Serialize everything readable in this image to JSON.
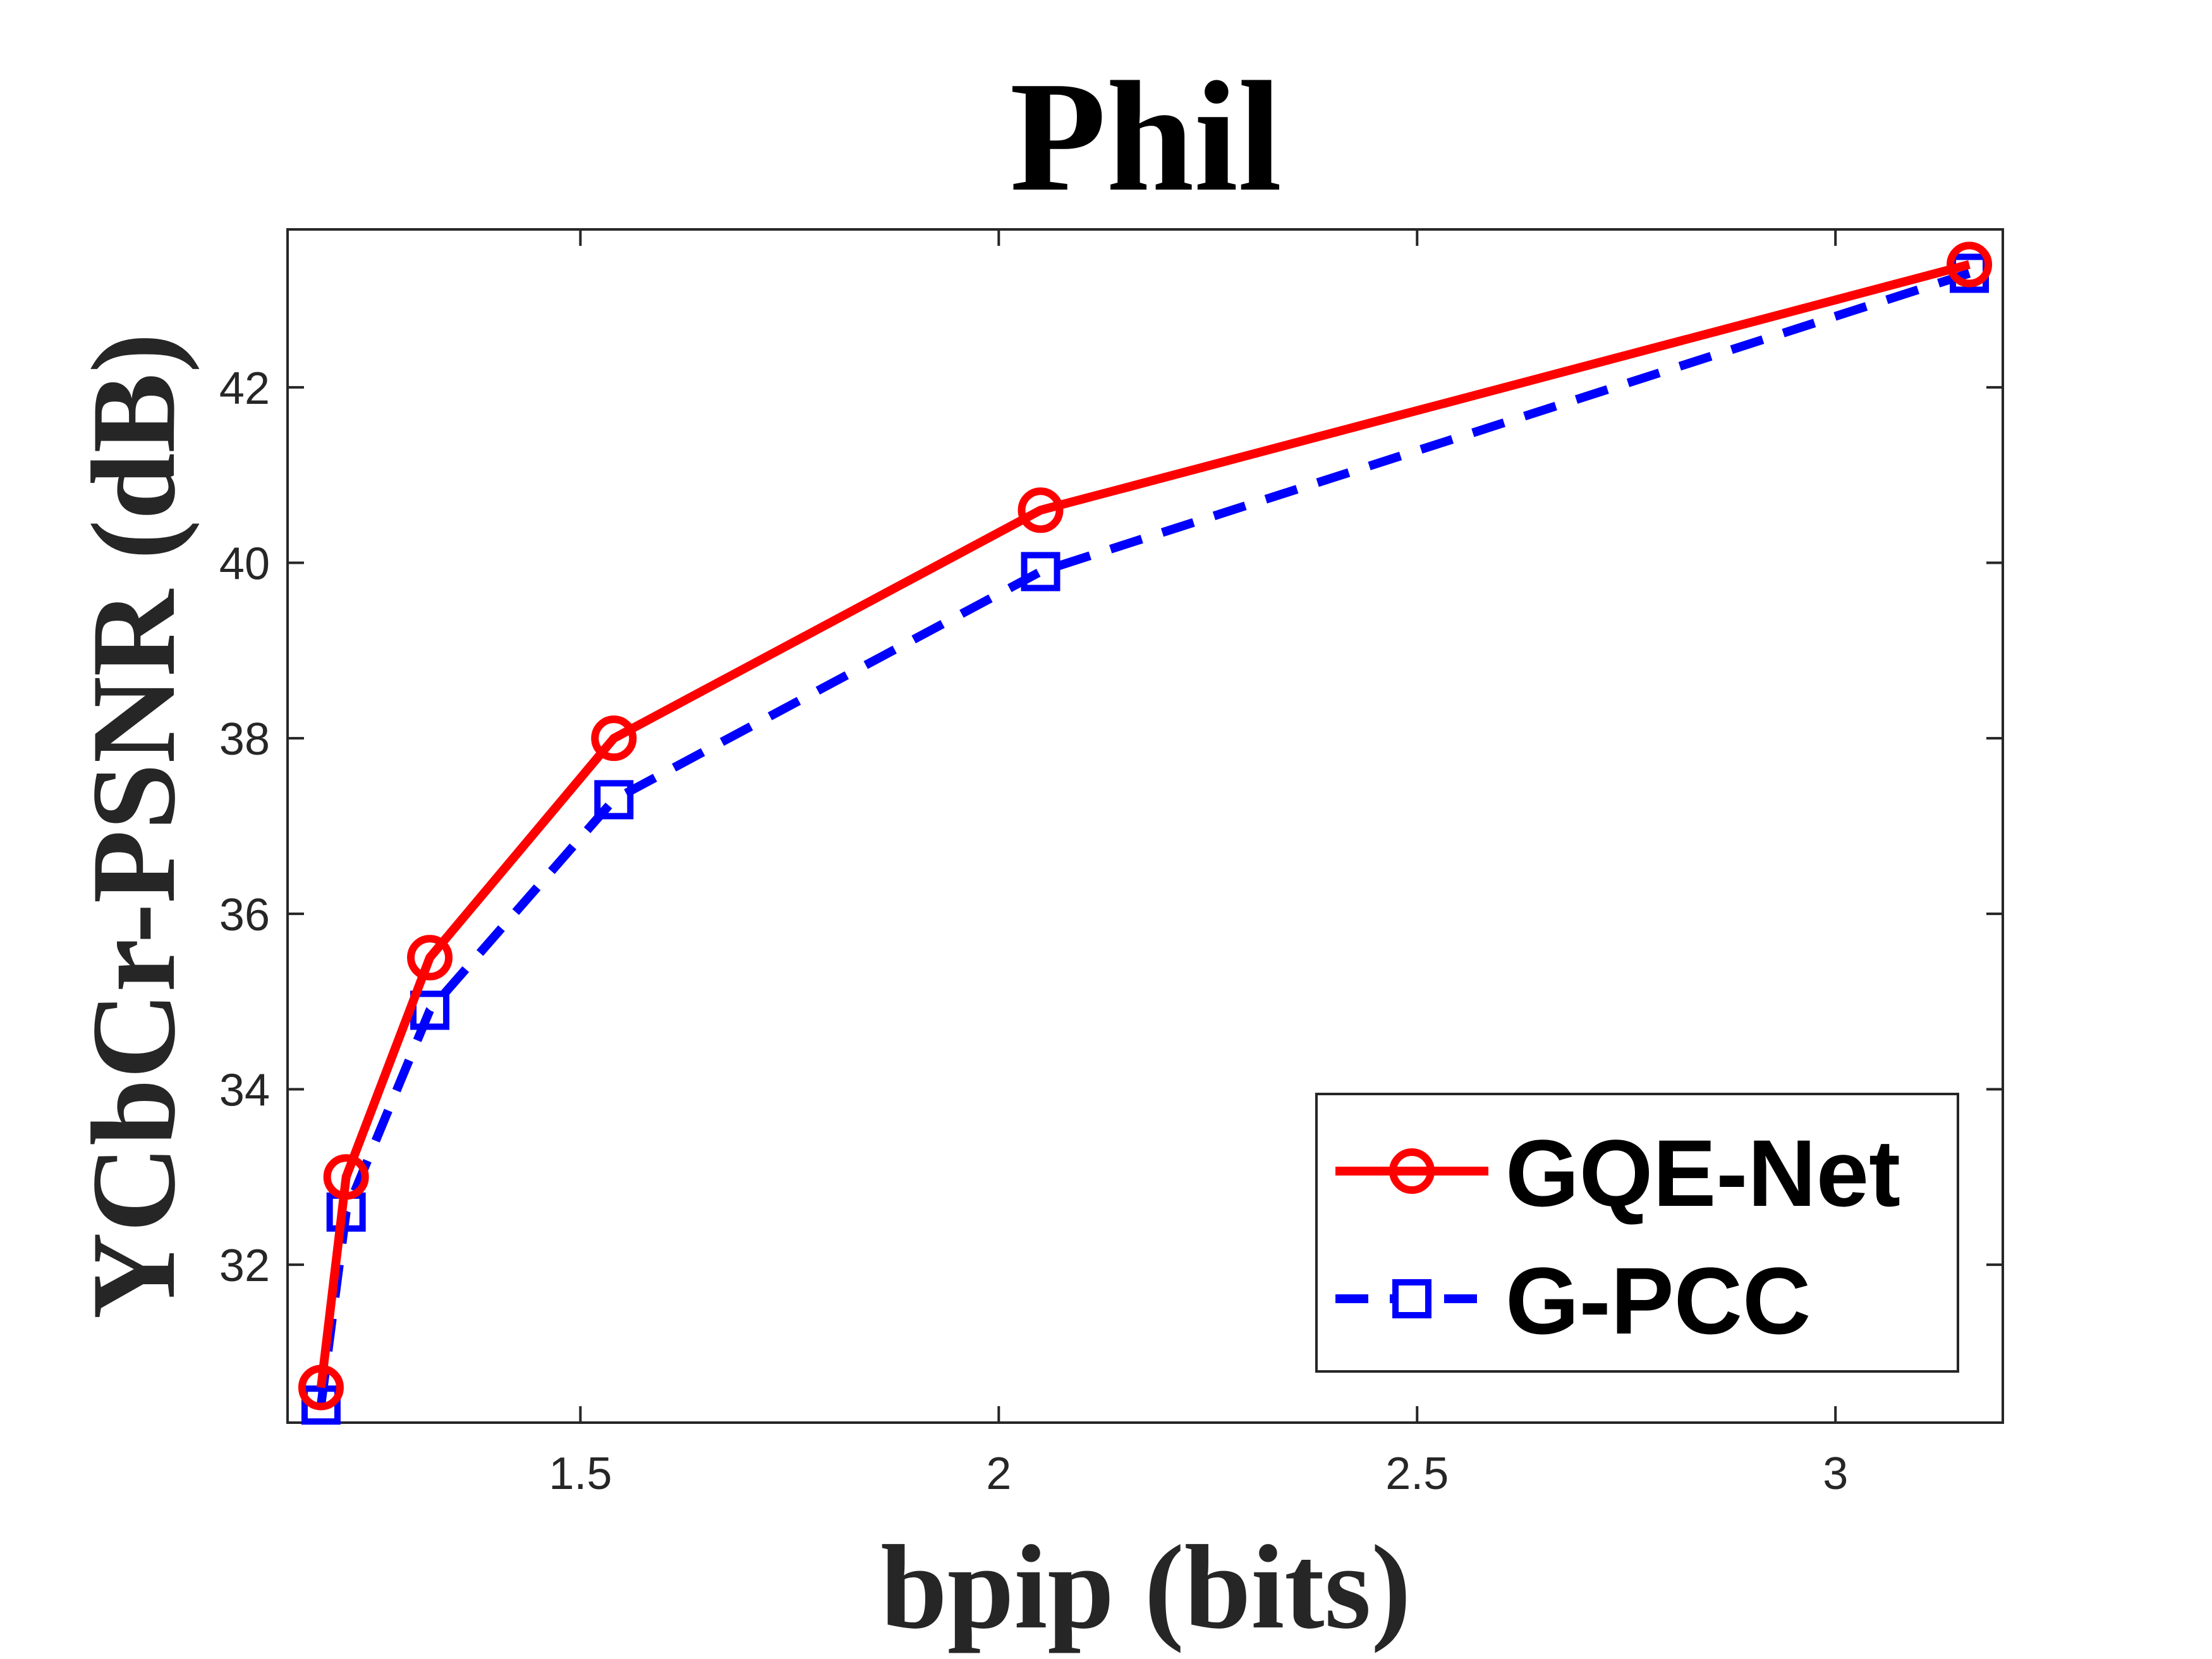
{
  "chart_data": {
    "type": "line",
    "title": "Phil",
    "xlabel": "bpip (bits)",
    "ylabel": "YCbCr-PSNR (dB)",
    "xlim": [
      1.15,
      3.2
    ],
    "ylim": [
      30.2,
      43.8
    ],
    "xticks": [
      1.5,
      2,
      2.5,
      3
    ],
    "xtick_labels": [
      "1.5",
      "2",
      "2.5",
      "3"
    ],
    "yticks": [
      32,
      34,
      36,
      38,
      40,
      42
    ],
    "ytick_labels": [
      "32",
      "34",
      "36",
      "38",
      "40",
      "42"
    ],
    "grid": false,
    "legend_position": "bottom-right",
    "series": [
      {
        "name": "GQE-Net",
        "color": "#ff0000",
        "line_style": "solid",
        "marker": "circle",
        "x": [
          1.19,
          1.22,
          1.32,
          1.54,
          2.05,
          3.16
        ],
        "y": [
          30.6,
          33.0,
          35.5,
          38.0,
          40.6,
          43.4
        ]
      },
      {
        "name": "G-PCC",
        "color": "#0000ff",
        "line_style": "dashed",
        "marker": "square",
        "x": [
          1.19,
          1.22,
          1.32,
          1.54,
          2.05,
          3.16
        ],
        "y": [
          30.4,
          32.6,
          34.9,
          37.3,
          39.9,
          43.3
        ]
      }
    ]
  }
}
